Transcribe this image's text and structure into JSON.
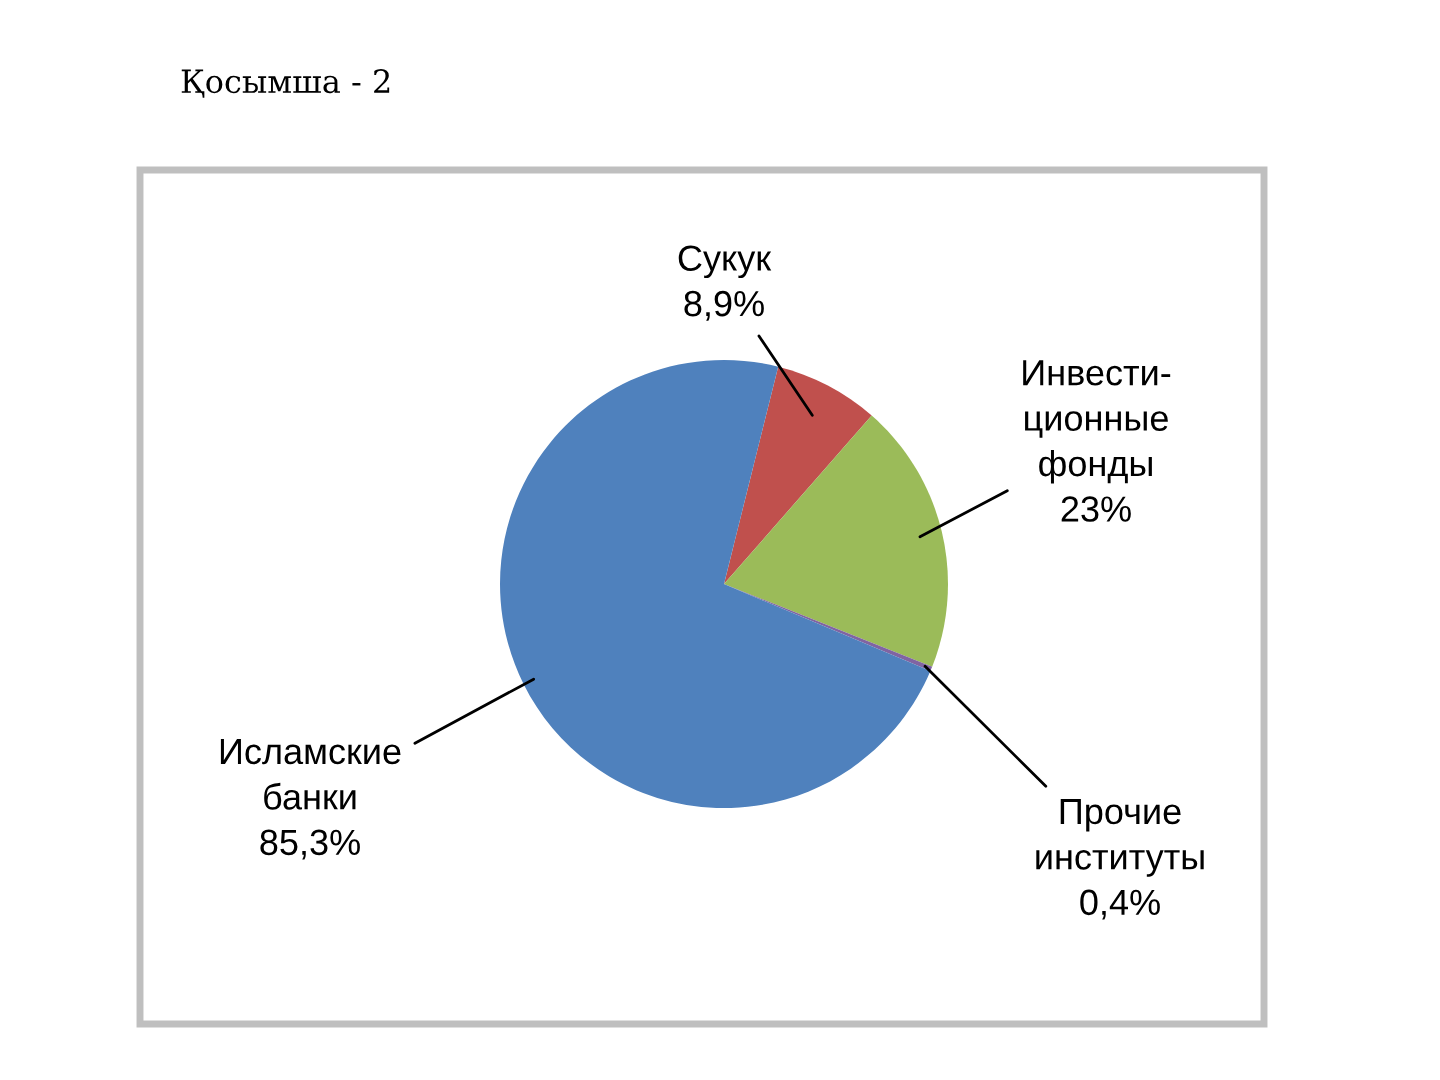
{
  "chart_data": {
    "type": "pie",
    "title": "Қосымша - 2",
    "categories": [
      "Сукук",
      "Инвести-\nционные\nфонды",
      "Прочие\nинституты",
      "Исламские\nбанки"
    ],
    "values": [
      8.9,
      23,
      0.4,
      85.3
    ],
    "value_labels": [
      "8,9%",
      "23%",
      "0,4%",
      "85,3%"
    ],
    "colors": [
      "#c0504d",
      "#9bbb59",
      "#8064a2",
      "#4f81bd"
    ]
  }
}
